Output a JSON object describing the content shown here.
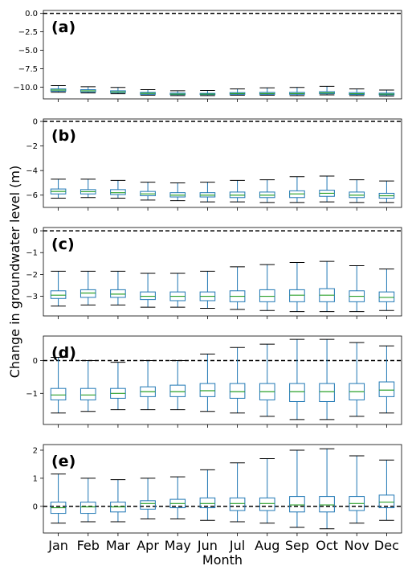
{
  "figure": {
    "xlabel": "Month",
    "ylabel": "Change in groundwater level (m)"
  },
  "colors": {
    "box": "#1f77b4",
    "median": "#2ca02c",
    "reference_line": "#000000"
  },
  "chart_data": {
    "type": "box",
    "reference_line": 0,
    "categories": [
      "Jan",
      "Feb",
      "Mar",
      "Apr",
      "May",
      "Jun",
      "Jul",
      "Aug",
      "Sep",
      "Oct",
      "Nov",
      "Dec"
    ],
    "panels": [
      {
        "label": "(a)",
        "ylim": [
          -11.6,
          0.4
        ],
        "yticks": [
          0.0,
          -2.5,
          -5.0,
          -7.5,
          -10.0
        ],
        "ytick_labels": [
          "0.0",
          "−2.5",
          "−5.0",
          "−7.5",
          "−10.0"
        ],
        "boxes": [
          {
            "min": -10.7,
            "q1": -10.55,
            "median": -10.4,
            "q3": -10.25,
            "max": -9.8
          },
          {
            "min": -10.8,
            "q1": -10.65,
            "median": -10.5,
            "q3": -10.35,
            "max": -9.95
          },
          {
            "min": -10.9,
            "q1": -10.75,
            "median": -10.65,
            "q3": -10.5,
            "max": -10.05
          },
          {
            "min": -11.1,
            "q1": -10.98,
            "median": -10.85,
            "q3": -10.72,
            "max": -10.35
          },
          {
            "min": -11.15,
            "q1": -11.02,
            "median": -10.95,
            "q3": -10.82,
            "max": -10.5
          },
          {
            "min": -11.15,
            "q1": -11.02,
            "median": -10.95,
            "q3": -10.85,
            "max": -10.45
          },
          {
            "min": -11.1,
            "q1": -10.98,
            "median": -10.88,
            "q3": -10.75,
            "max": -10.25
          },
          {
            "min": -11.1,
            "q1": -10.98,
            "median": -10.88,
            "q3": -10.72,
            "max": -10.1
          },
          {
            "min": -11.15,
            "q1": -10.98,
            "median": -10.88,
            "q3": -10.72,
            "max": -10.05
          },
          {
            "min": -11.05,
            "q1": -10.9,
            "median": -10.78,
            "q3": -10.62,
            "max": -9.9
          },
          {
            "min": -11.15,
            "q1": -11.0,
            "median": -10.9,
            "q3": -10.75,
            "max": -10.25
          },
          {
            "min": -11.2,
            "q1": -11.05,
            "median": -10.95,
            "q3": -10.82,
            "max": -10.4
          }
        ]
      },
      {
        "label": "(b)",
        "ylim": [
          -7.0,
          0.2
        ],
        "yticks": [
          0,
          -2,
          -4,
          -6
        ],
        "ytick_labels": [
          "0",
          "−2",
          "−4",
          "−6"
        ],
        "boxes": [
          {
            "min": -6.25,
            "q1": -5.9,
            "median": -5.7,
            "q3": -5.5,
            "max": -4.7
          },
          {
            "min": -6.2,
            "q1": -5.9,
            "median": -5.72,
            "q3": -5.55,
            "max": -4.7
          },
          {
            "min": -6.25,
            "q1": -5.95,
            "median": -5.8,
            "q3": -5.55,
            "max": -4.8
          },
          {
            "min": -6.4,
            "q1": -6.05,
            "median": -5.9,
            "q3": -5.7,
            "max": -4.95
          },
          {
            "min": -6.45,
            "q1": -6.15,
            "median": -6.0,
            "q3": -5.8,
            "max": -5.0
          },
          {
            "min": -6.55,
            "q1": -6.15,
            "median": -6.0,
            "q3": -5.8,
            "max": -4.95
          },
          {
            "min": -6.55,
            "q1": -6.2,
            "median": -6.0,
            "q3": -5.75,
            "max": -4.8
          },
          {
            "min": -6.6,
            "q1": -6.2,
            "median": -6.0,
            "q3": -5.75,
            "max": -4.75
          },
          {
            "min": -6.6,
            "q1": -6.2,
            "median": -5.9,
            "q3": -5.65,
            "max": -4.5
          },
          {
            "min": -6.55,
            "q1": -6.1,
            "median": -5.85,
            "q3": -5.6,
            "max": -4.45
          },
          {
            "min": -6.6,
            "q1": -6.2,
            "median": -6.0,
            "q3": -5.75,
            "max": -4.75
          },
          {
            "min": -6.6,
            "q1": -6.25,
            "median": -6.05,
            "q3": -5.85,
            "max": -4.85
          }
        ]
      },
      {
        "label": "(c)",
        "ylim": [
          -3.9,
          0.15
        ],
        "yticks": [
          0,
          -1,
          -2,
          -3
        ],
        "ytick_labels": [
          "0",
          "−1",
          "−2",
          "−3"
        ],
        "boxes": [
          {
            "min": -3.45,
            "q1": -3.1,
            "median": -2.95,
            "q3": -2.75,
            "max": -1.85
          },
          {
            "min": -3.4,
            "q1": -3.05,
            "median": -2.85,
            "q3": -2.7,
            "max": -1.85
          },
          {
            "min": -3.4,
            "q1": -3.05,
            "median": -2.9,
            "q3": -2.7,
            "max": -1.85
          },
          {
            "min": -3.5,
            "q1": -3.15,
            "median": -3.0,
            "q3": -2.8,
            "max": -1.95
          },
          {
            "min": -3.5,
            "q1": -3.2,
            "median": -3.0,
            "q3": -2.8,
            "max": -1.95
          },
          {
            "min": -3.55,
            "q1": -3.2,
            "median": -3.0,
            "q3": -2.8,
            "max": -1.85
          },
          {
            "min": -3.6,
            "q1": -3.25,
            "median": -3.0,
            "q3": -2.75,
            "max": -1.65
          },
          {
            "min": -3.65,
            "q1": -3.25,
            "median": -3.0,
            "q3": -2.7,
            "max": -1.55
          },
          {
            "min": -3.7,
            "q1": -3.25,
            "median": -2.95,
            "q3": -2.7,
            "max": -1.45
          },
          {
            "min": -3.7,
            "q1": -3.25,
            "median": -2.95,
            "q3": -2.65,
            "max": -1.4
          },
          {
            "min": -3.7,
            "q1": -3.25,
            "median": -3.0,
            "q3": -2.75,
            "max": -1.6
          },
          {
            "min": -3.65,
            "q1": -3.25,
            "median": -3.05,
            "q3": -2.8,
            "max": -1.75
          }
        ]
      },
      {
        "label": "(d)",
        "ylim": [
          -1.95,
          0.75
        ],
        "yticks": [
          0,
          -1
        ],
        "ytick_labels": [
          "0",
          "−1"
        ],
        "boxes": [
          {
            "min": -1.6,
            "q1": -1.2,
            "median": -1.05,
            "q3": -0.85,
            "max": 0.1
          },
          {
            "min": -1.55,
            "q1": -1.2,
            "median": -1.05,
            "q3": -0.85,
            "max": 0.0
          },
          {
            "min": -1.5,
            "q1": -1.15,
            "median": -1.0,
            "q3": -0.85,
            "max": -0.05
          },
          {
            "min": -1.5,
            "q1": -1.1,
            "median": -0.95,
            "q3": -0.8,
            "max": 0.0
          },
          {
            "min": -1.5,
            "q1": -1.1,
            "median": -0.95,
            "q3": -0.75,
            "max": 0.0
          },
          {
            "min": -1.55,
            "q1": -1.1,
            "median": -0.92,
            "q3": -0.7,
            "max": 0.2
          },
          {
            "min": -1.6,
            "q1": -1.15,
            "median": -0.95,
            "q3": -0.7,
            "max": 0.4
          },
          {
            "min": -1.7,
            "q1": -1.2,
            "median": -0.95,
            "q3": -0.7,
            "max": 0.5
          },
          {
            "min": -1.8,
            "q1": -1.25,
            "median": -0.95,
            "q3": -0.7,
            "max": 0.65
          },
          {
            "min": -1.8,
            "q1": -1.25,
            "median": -0.95,
            "q3": -0.7,
            "max": 0.65
          },
          {
            "min": -1.7,
            "q1": -1.2,
            "median": -0.95,
            "q3": -0.7,
            "max": 0.55
          },
          {
            "min": -1.6,
            "q1": -1.1,
            "median": -0.9,
            "q3": -0.65,
            "max": 0.45
          }
        ]
      },
      {
        "label": "(e)",
        "ylim": [
          -0.95,
          2.2
        ],
        "yticks": [
          2,
          1,
          0
        ],
        "ytick_labels": [
          "2",
          "1",
          "0"
        ],
        "boxes": [
          {
            "min": -0.6,
            "q1": -0.25,
            "median": -0.05,
            "q3": 0.15,
            "max": 1.15
          },
          {
            "min": -0.55,
            "q1": -0.25,
            "median": -0.02,
            "q3": 0.15,
            "max": 1.0
          },
          {
            "min": -0.55,
            "q1": -0.2,
            "median": -0.02,
            "q3": 0.15,
            "max": 0.95
          },
          {
            "min": -0.45,
            "q1": -0.1,
            "median": 0.1,
            "q3": 0.2,
            "max": 1.0
          },
          {
            "min": -0.45,
            "q1": -0.05,
            "median": 0.1,
            "q3": 0.25,
            "max": 1.05
          },
          {
            "min": -0.5,
            "q1": -0.05,
            "median": 0.1,
            "q3": 0.3,
            "max": 1.3
          },
          {
            "min": -0.55,
            "q1": -0.15,
            "median": 0.1,
            "q3": 0.3,
            "max": 1.55
          },
          {
            "min": -0.6,
            "q1": -0.15,
            "median": 0.1,
            "q3": 0.3,
            "max": 1.7
          },
          {
            "min": -0.75,
            "q1": -0.2,
            "median": 0.05,
            "q3": 0.35,
            "max": 2.0
          },
          {
            "min": -0.8,
            "q1": -0.2,
            "median": 0.05,
            "q3": 0.35,
            "max": 2.05
          },
          {
            "min": -0.6,
            "q1": -0.15,
            "median": 0.1,
            "q3": 0.35,
            "max": 1.8
          },
          {
            "min": -0.5,
            "q1": -0.05,
            "median": 0.15,
            "q3": 0.4,
            "max": 1.65
          }
        ]
      }
    ]
  }
}
